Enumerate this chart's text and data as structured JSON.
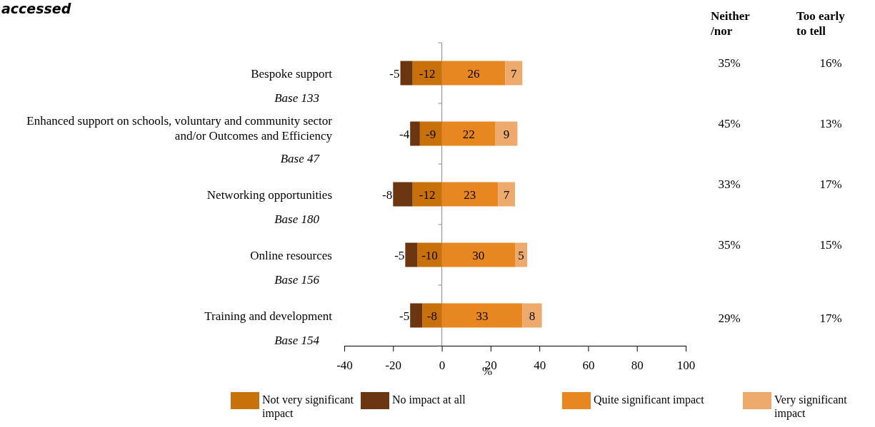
{
  "chart_data": {
    "type": "bar",
    "orientation": "horizontal",
    "stacked": true,
    "title": "accessed",
    "xlabel": "%",
    "categories": [
      "Bespoke support",
      "Enhanced support on schools, voluntary and community sector and/or Outcomes and Efficiency",
      "Networking opportunities",
      "Online resources",
      "Training and development"
    ],
    "series": [
      {
        "name": "Not very significant impact",
        "color": "#c8700a",
        "values": [
          -12,
          -9,
          -12,
          -10,
          -8
        ]
      },
      {
        "name": "No impact at all",
        "color": "#6b3510",
        "values": [
          -5,
          -4,
          -8,
          -5,
          -5
        ]
      },
      {
        "name": "Quite significant impact",
        "color": "#e8861f",
        "values": [
          26,
          22,
          23,
          30,
          33
        ]
      },
      {
        "name": "Very significant impact",
        "color": "#eeaa6c",
        "values": [
          7,
          9,
          7,
          5,
          8
        ]
      }
    ],
    "xlim": [
      -40,
      100
    ],
    "xticks": [
      -40,
      -20,
      0,
      20,
      40,
      60,
      80,
      100
    ],
    "data_labels": true,
    "legend": "bottom",
    "ref_lines": [
      {
        "axis": "x",
        "value": 0
      }
    ],
    "annotations": [
      "Base 133",
      "Base 47",
      "Base 180",
      "Base 156",
      "Base 154",
      "Neither /nor",
      "Too early to tell",
      "35%",
      "16%",
      "45%",
      "13%",
      "33%",
      "17%",
      "35%",
      "15%",
      "29%",
      "17%"
    ]
  }
}
